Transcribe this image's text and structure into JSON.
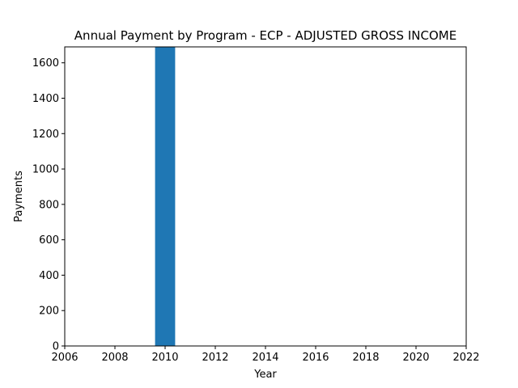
{
  "chart_data": {
    "type": "bar",
    "title": "Annual Payment by Program - ECP - ADJUSTED GROSS INCOME",
    "xlabel": "Year",
    "ylabel": "Payments",
    "xlim": [
      2006,
      2022
    ],
    "ylim": [
      0,
      1690
    ],
    "x_ticks": [
      2006,
      2008,
      2010,
      2012,
      2014,
      2016,
      2018,
      2020,
      2022
    ],
    "y_ticks": [
      0,
      200,
      400,
      600,
      800,
      1000,
      1200,
      1400,
      1600
    ],
    "bar_width_years": 0.8,
    "grid": false,
    "bar_color": "#1f77b4",
    "series": [
      {
        "x": [
          2010
        ],
        "values": [
          1690
        ]
      }
    ]
  }
}
